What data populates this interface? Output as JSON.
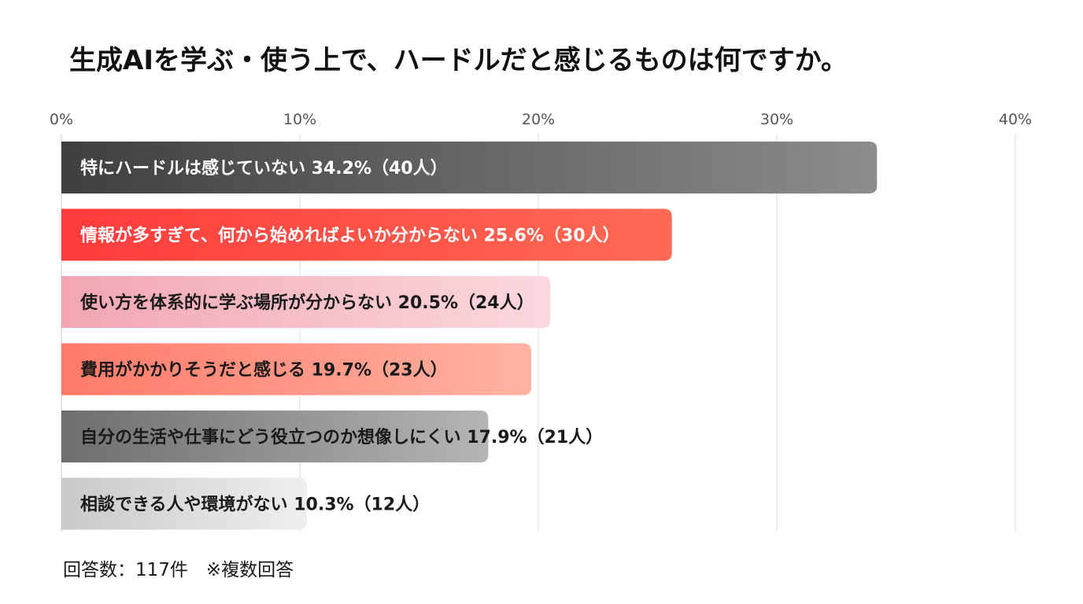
{
  "chart_data": {
    "type": "bar",
    "orientation": "horizontal",
    "title": "生成AIを学ぶ・使う上で、ハードルだと感じるものは何ですか。",
    "xlim": [
      0,
      40
    ],
    "ticks": [
      0,
      10,
      20,
      30,
      40
    ],
    "tick_labels": [
      "0%",
      "10%",
      "20%",
      "30%",
      "40%"
    ],
    "grid": true,
    "categories": [
      "特にハードルは感じていない",
      "情報が多すぎて、何から始めればよいか分からない",
      "使い方を体系的に学ぶ場所が分からない",
      "費用がかかりそうだと感じる",
      "自分の生活や仕事にどう役立つのか想像しにくい",
      "相談できる人や環境がない"
    ],
    "values": [
      34.2,
      25.6,
      20.5,
      19.7,
      17.9,
      10.3
    ],
    "counts": [
      "40人",
      "30人",
      "24人",
      "23人",
      "21人",
      "12人"
    ],
    "value_labels": [
      "34.2%（40人）",
      "25.6%（30人）",
      "20.5%（24人）",
      "19.7%（23人）",
      "17.9%（21人）",
      "10.3%（12人）"
    ],
    "bar_colors": [
      [
        "#3f3f3f",
        "#8c8c8c"
      ],
      [
        "#ff3b3b",
        "#ff6a55"
      ],
      [
        "#f2a6b2",
        "#fbd9de"
      ],
      [
        "#ff7a6a",
        "#ffb3a3"
      ],
      [
        "#6e6e6e",
        "#b5b5b5"
      ],
      [
        "#c9c9c9",
        "#efefef"
      ]
    ],
    "label_colors": [
      "#ffffff",
      "#ffffff",
      "#1a1a1a",
      "#1a1a1a",
      "#1a1a1a",
      "#1a1a1a"
    ]
  },
  "footnote": "回答数：117件　※複数回答"
}
